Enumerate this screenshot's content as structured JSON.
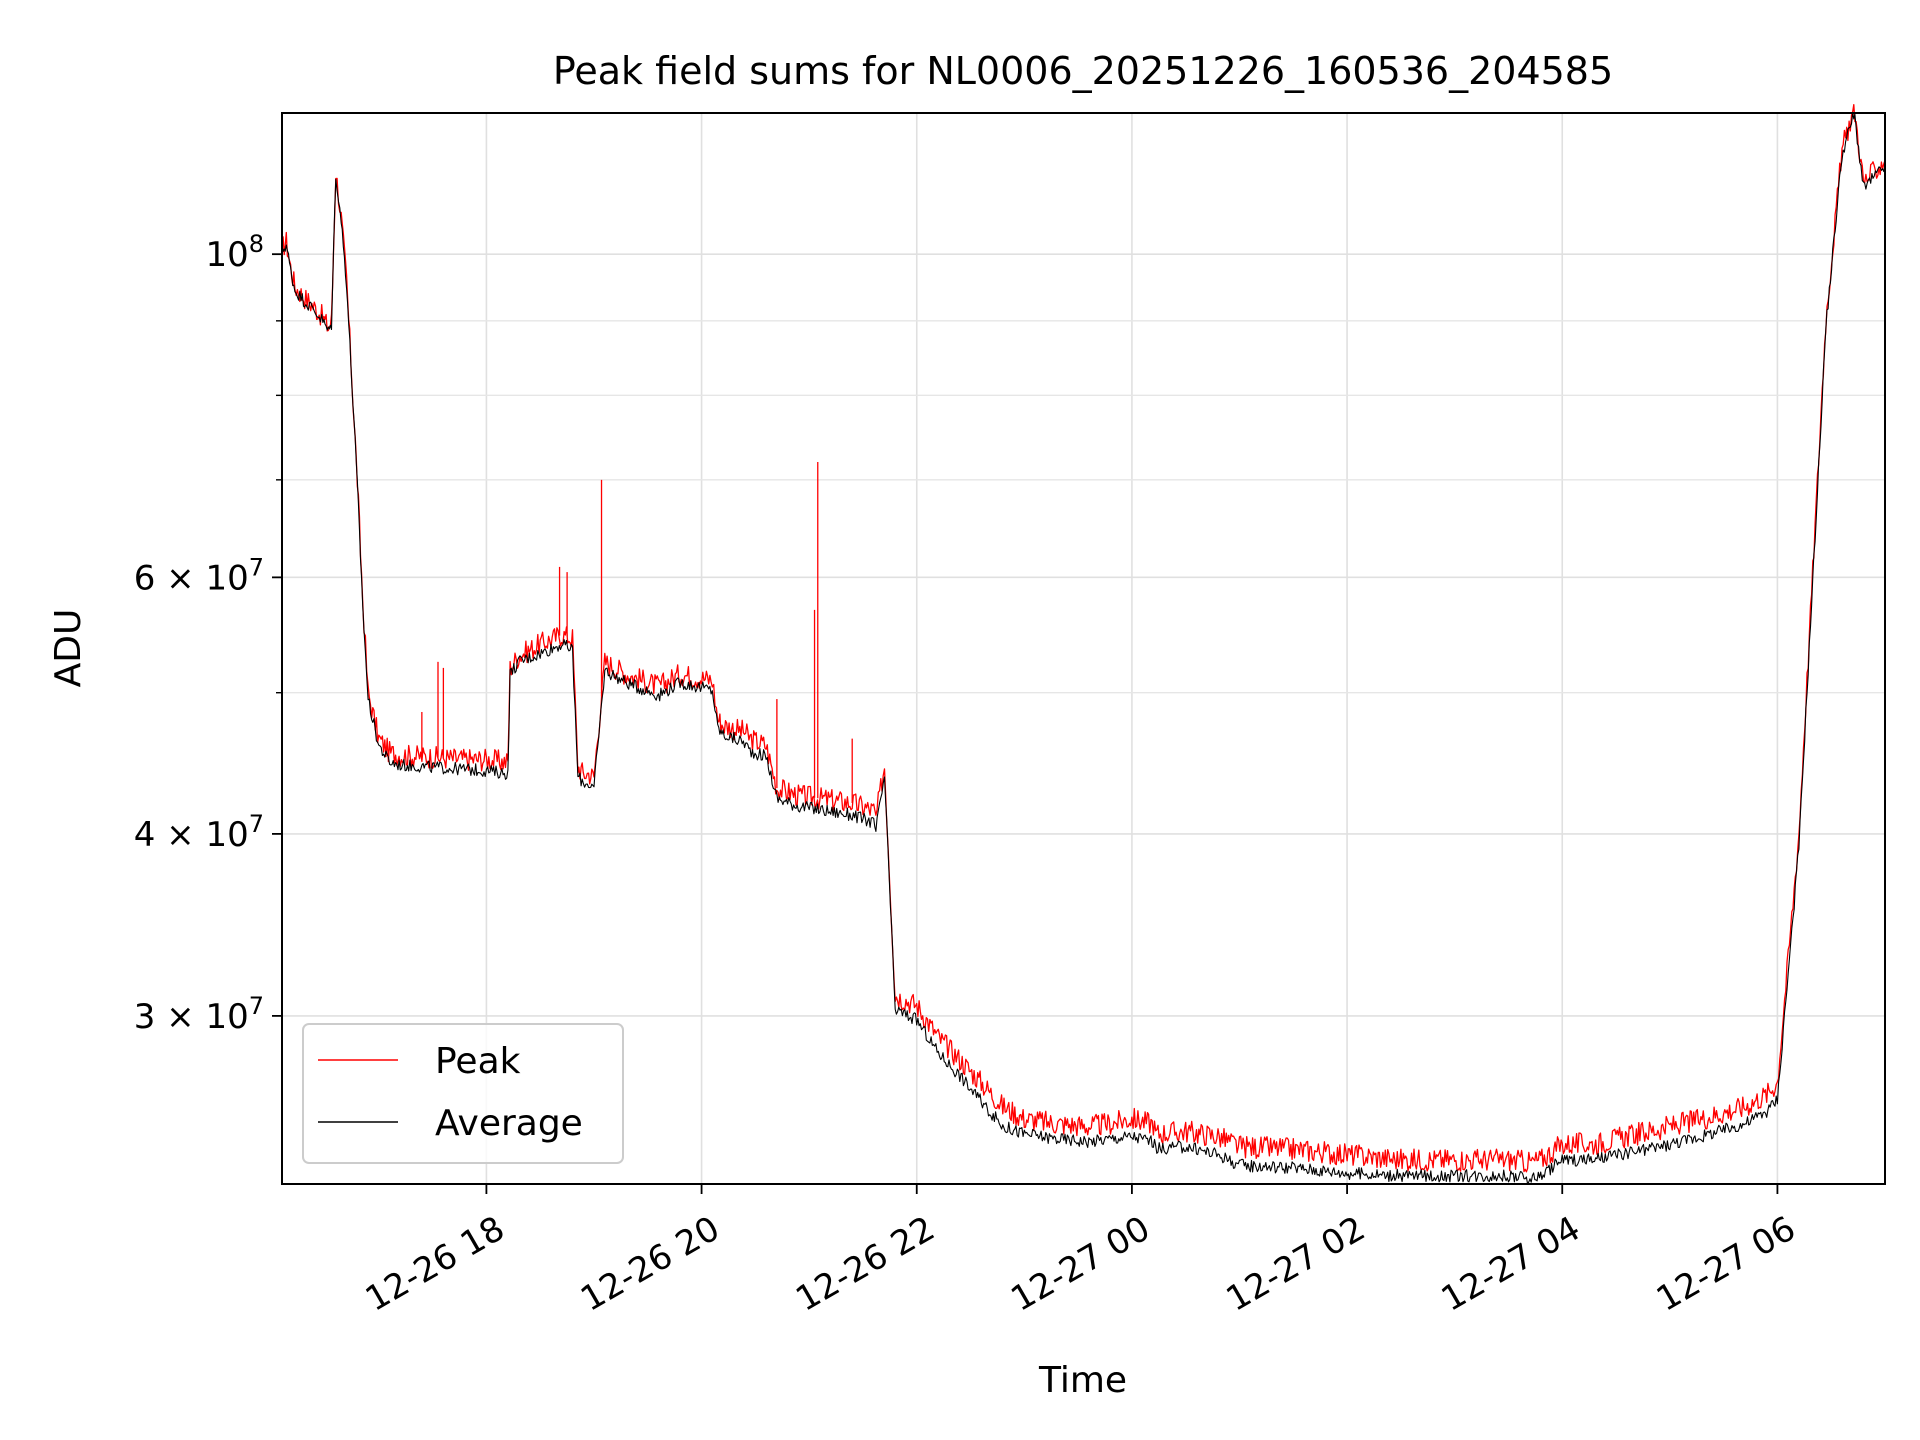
{
  "chart_data": {
    "type": "line",
    "title": "Peak field sums for NL0006_20251226_160536_204585",
    "xlabel": "Time",
    "ylabel": "ADU",
    "yscale": "log",
    "xlim_hours": [
      -1.9,
      13.0
    ],
    "ylim": [
      23000000,
      125000000
    ],
    "grid": true,
    "legend_position": "lower-left",
    "x_ticks": [
      {
        "hours": 0,
        "label": "12-26 18"
      },
      {
        "hours": 2,
        "label": "12-26 20"
      },
      {
        "hours": 4,
        "label": "12-26 22"
      },
      {
        "hours": 6,
        "label": "12-27 00"
      },
      {
        "hours": 8,
        "label": "12-27 02"
      },
      {
        "hours": 10,
        "label": "12-27 04"
      },
      {
        "hours": 12,
        "label": "12-27 06"
      }
    ],
    "y_ticks": [
      {
        "value": 30000000,
        "mantissa": "3",
        "exponent": "7",
        "times": "×"
      },
      {
        "value": 40000000,
        "mantissa": "4",
        "exponent": "7",
        "times": "×"
      },
      {
        "value": 60000000,
        "mantissa": "6",
        "exponent": "7",
        "times": "×"
      },
      {
        "value": 100000000,
        "mantissa": "",
        "exponent": "8",
        "times": ""
      }
    ],
    "y_minor_ticks": [
      50000000,
      70000000,
      80000000,
      90000000
    ],
    "series": [
      {
        "name": "Peak",
        "color": "#ff0000",
        "x_hours": [
          -1.9,
          -1.86,
          -1.82,
          -1.78,
          -1.7,
          -1.6,
          -1.52,
          -1.47,
          -1.44,
          -1.4,
          -1.35,
          -1.3,
          -1.25,
          -1.2,
          -1.15,
          -1.1,
          -1.0,
          -0.9,
          -0.8,
          -0.6,
          -0.4,
          -0.2,
          0.0,
          0.2,
          0.22,
          0.3,
          0.5,
          0.7,
          0.8,
          0.85,
          0.9,
          0.95,
          1.0,
          1.1,
          1.2,
          1.3,
          1.6,
          1.8,
          2.1,
          2.15,
          2.2,
          2.4,
          2.45,
          2.6,
          2.7,
          2.9,
          3.4,
          3.6,
          3.62,
          3.7,
          3.8,
          4.0,
          4.2,
          4.4,
          4.6,
          4.8,
          5.0,
          5.3,
          5.6,
          5.8,
          6.0,
          6.2,
          6.22,
          6.5,
          6.8,
          7.0,
          7.5,
          8.0,
          8.5,
          9.0,
          9.5,
          9.7,
          9.8,
          10.0,
          10.3,
          10.8,
          11.3,
          11.7,
          11.9,
          12.0,
          12.2,
          12.35,
          12.45,
          12.6,
          12.7,
          12.72,
          12.8,
          13.0
        ],
        "y": [
          101000000,
          102000000,
          98000000,
          95000000,
          93500000,
          92000000,
          90500000,
          89000000,
          90000000,
          114000000,
          106000000,
          96000000,
          82000000,
          70000000,
          58000000,
          50000000,
          46500000,
          45500000,
          45300000,
          45200000,
          45100000,
          45000000,
          45000000,
          44800000,
          52000000,
          53000000,
          54000000,
          54800000,
          54500000,
          44500000,
          44000000,
          44000000,
          43800000,
          52500000,
          52000000,
          51500000,
          50500000,
          51500000,
          51000000,
          48000000,
          47500000,
          47000000,
          46500000,
          46000000,
          43000000,
          42500000,
          42000000,
          41500000,
          41000000,
          44500000,
          31000000,
          30500000,
          29000000,
          28000000,
          27000000,
          26000000,
          25500000,
          25300000,
          25200000,
          25300000,
          25500000,
          25300000,
          24900000,
          25000000,
          24800000,
          24400000,
          24300000,
          24100000,
          23900000,
          23900000,
          23900000,
          23800000,
          23900000,
          24500000,
          24500000,
          25000000,
          25500000,
          26000000,
          26500000,
          27000000,
          40000000,
          65000000,
          90000000,
          118000000,
          125000000,
          125000000,
          112000000,
          116000000
        ]
      },
      {
        "name": "Average",
        "color": "#000000",
        "x_hours": [
          -1.9,
          -1.86,
          -1.82,
          -1.78,
          -1.7,
          -1.6,
          -1.52,
          -1.47,
          -1.44,
          -1.4,
          -1.35,
          -1.3,
          -1.25,
          -1.2,
          -1.15,
          -1.1,
          -1.0,
          -0.9,
          -0.8,
          -0.6,
          -0.4,
          -0.2,
          0.0,
          0.2,
          0.22,
          0.3,
          0.5,
          0.7,
          0.8,
          0.85,
          0.9,
          0.95,
          1.0,
          1.1,
          1.2,
          1.3,
          1.6,
          1.8,
          2.1,
          2.15,
          2.2,
          2.4,
          2.45,
          2.6,
          2.7,
          2.9,
          3.4,
          3.6,
          3.62,
          3.7,
          3.8,
          4.0,
          4.2,
          4.4,
          4.6,
          4.8,
          5.0,
          5.3,
          5.6,
          5.8,
          6.0,
          6.2,
          6.22,
          6.5,
          6.8,
          7.0,
          7.5,
          8.0,
          8.5,
          9.0,
          9.5,
          9.7,
          9.8,
          10.0,
          10.3,
          10.8,
          11.3,
          11.7,
          11.9,
          12.0,
          12.2,
          12.35,
          12.45,
          12.6,
          12.7,
          12.72,
          12.8,
          13.0
        ],
        "y": [
          100500000,
          101500000,
          97500000,
          94500000,
          93000000,
          91500000,
          90000000,
          88500000,
          89500000,
          113500000,
          105500000,
          95500000,
          81500000,
          69500000,
          57500000,
          49500000,
          46000000,
          44800000,
          44600000,
          44500000,
          44400000,
          44300000,
          44200000,
          44000000,
          51500000,
          52500000,
          53200000,
          54000000,
          53500000,
          43800000,
          43400000,
          43300000,
          43000000,
          51800000,
          51300000,
          50800000,
          49800000,
          50800000,
          50200000,
          47300000,
          46800000,
          46200000,
          45600000,
          45200000,
          42300000,
          41800000,
          41200000,
          40700000,
          40200000,
          43800000,
          30300000,
          29800000,
          28300000,
          27300000,
          26200000,
          25200000,
          24900000,
          24700000,
          24600000,
          24700000,
          24800000,
          24600000,
          24300000,
          24400000,
          24100000,
          23700000,
          23600000,
          23400000,
          23300000,
          23300000,
          23300000,
          23200000,
          23300000,
          23900000,
          23900000,
          24300000,
          24800000,
          25300000,
          25800000,
          26300000,
          39200000,
          64000000,
          89000000,
          117000000,
          124000000,
          124000000,
          111000000,
          115000000
        ]
      }
    ],
    "spikes": [
      {
        "series": "Peak",
        "x_hours": -0.6,
        "y": 48500000
      },
      {
        "series": "Peak",
        "x_hours": -0.45,
        "y": 52500000
      },
      {
        "series": "Peak",
        "x_hours": -0.4,
        "y": 52000000
      },
      {
        "series": "Peak",
        "x_hours": 0.68,
        "y": 61000000
      },
      {
        "series": "Peak",
        "x_hours": 0.75,
        "y": 60500000
      },
      {
        "series": "Peak",
        "x_hours": 1.07,
        "y": 70000000
      },
      {
        "series": "Peak",
        "x_hours": 2.7,
        "y": 49500000
      },
      {
        "series": "Peak",
        "x_hours": 3.05,
        "y": 57000000
      },
      {
        "series": "Peak",
        "x_hours": 3.08,
        "y": 72000000
      },
      {
        "series": "Peak",
        "x_hours": 3.4,
        "y": 46500000
      }
    ],
    "legend": [
      {
        "label": "Peak",
        "color": "#ff0000"
      },
      {
        "label": "Average",
        "color": "#000000"
      }
    ]
  }
}
